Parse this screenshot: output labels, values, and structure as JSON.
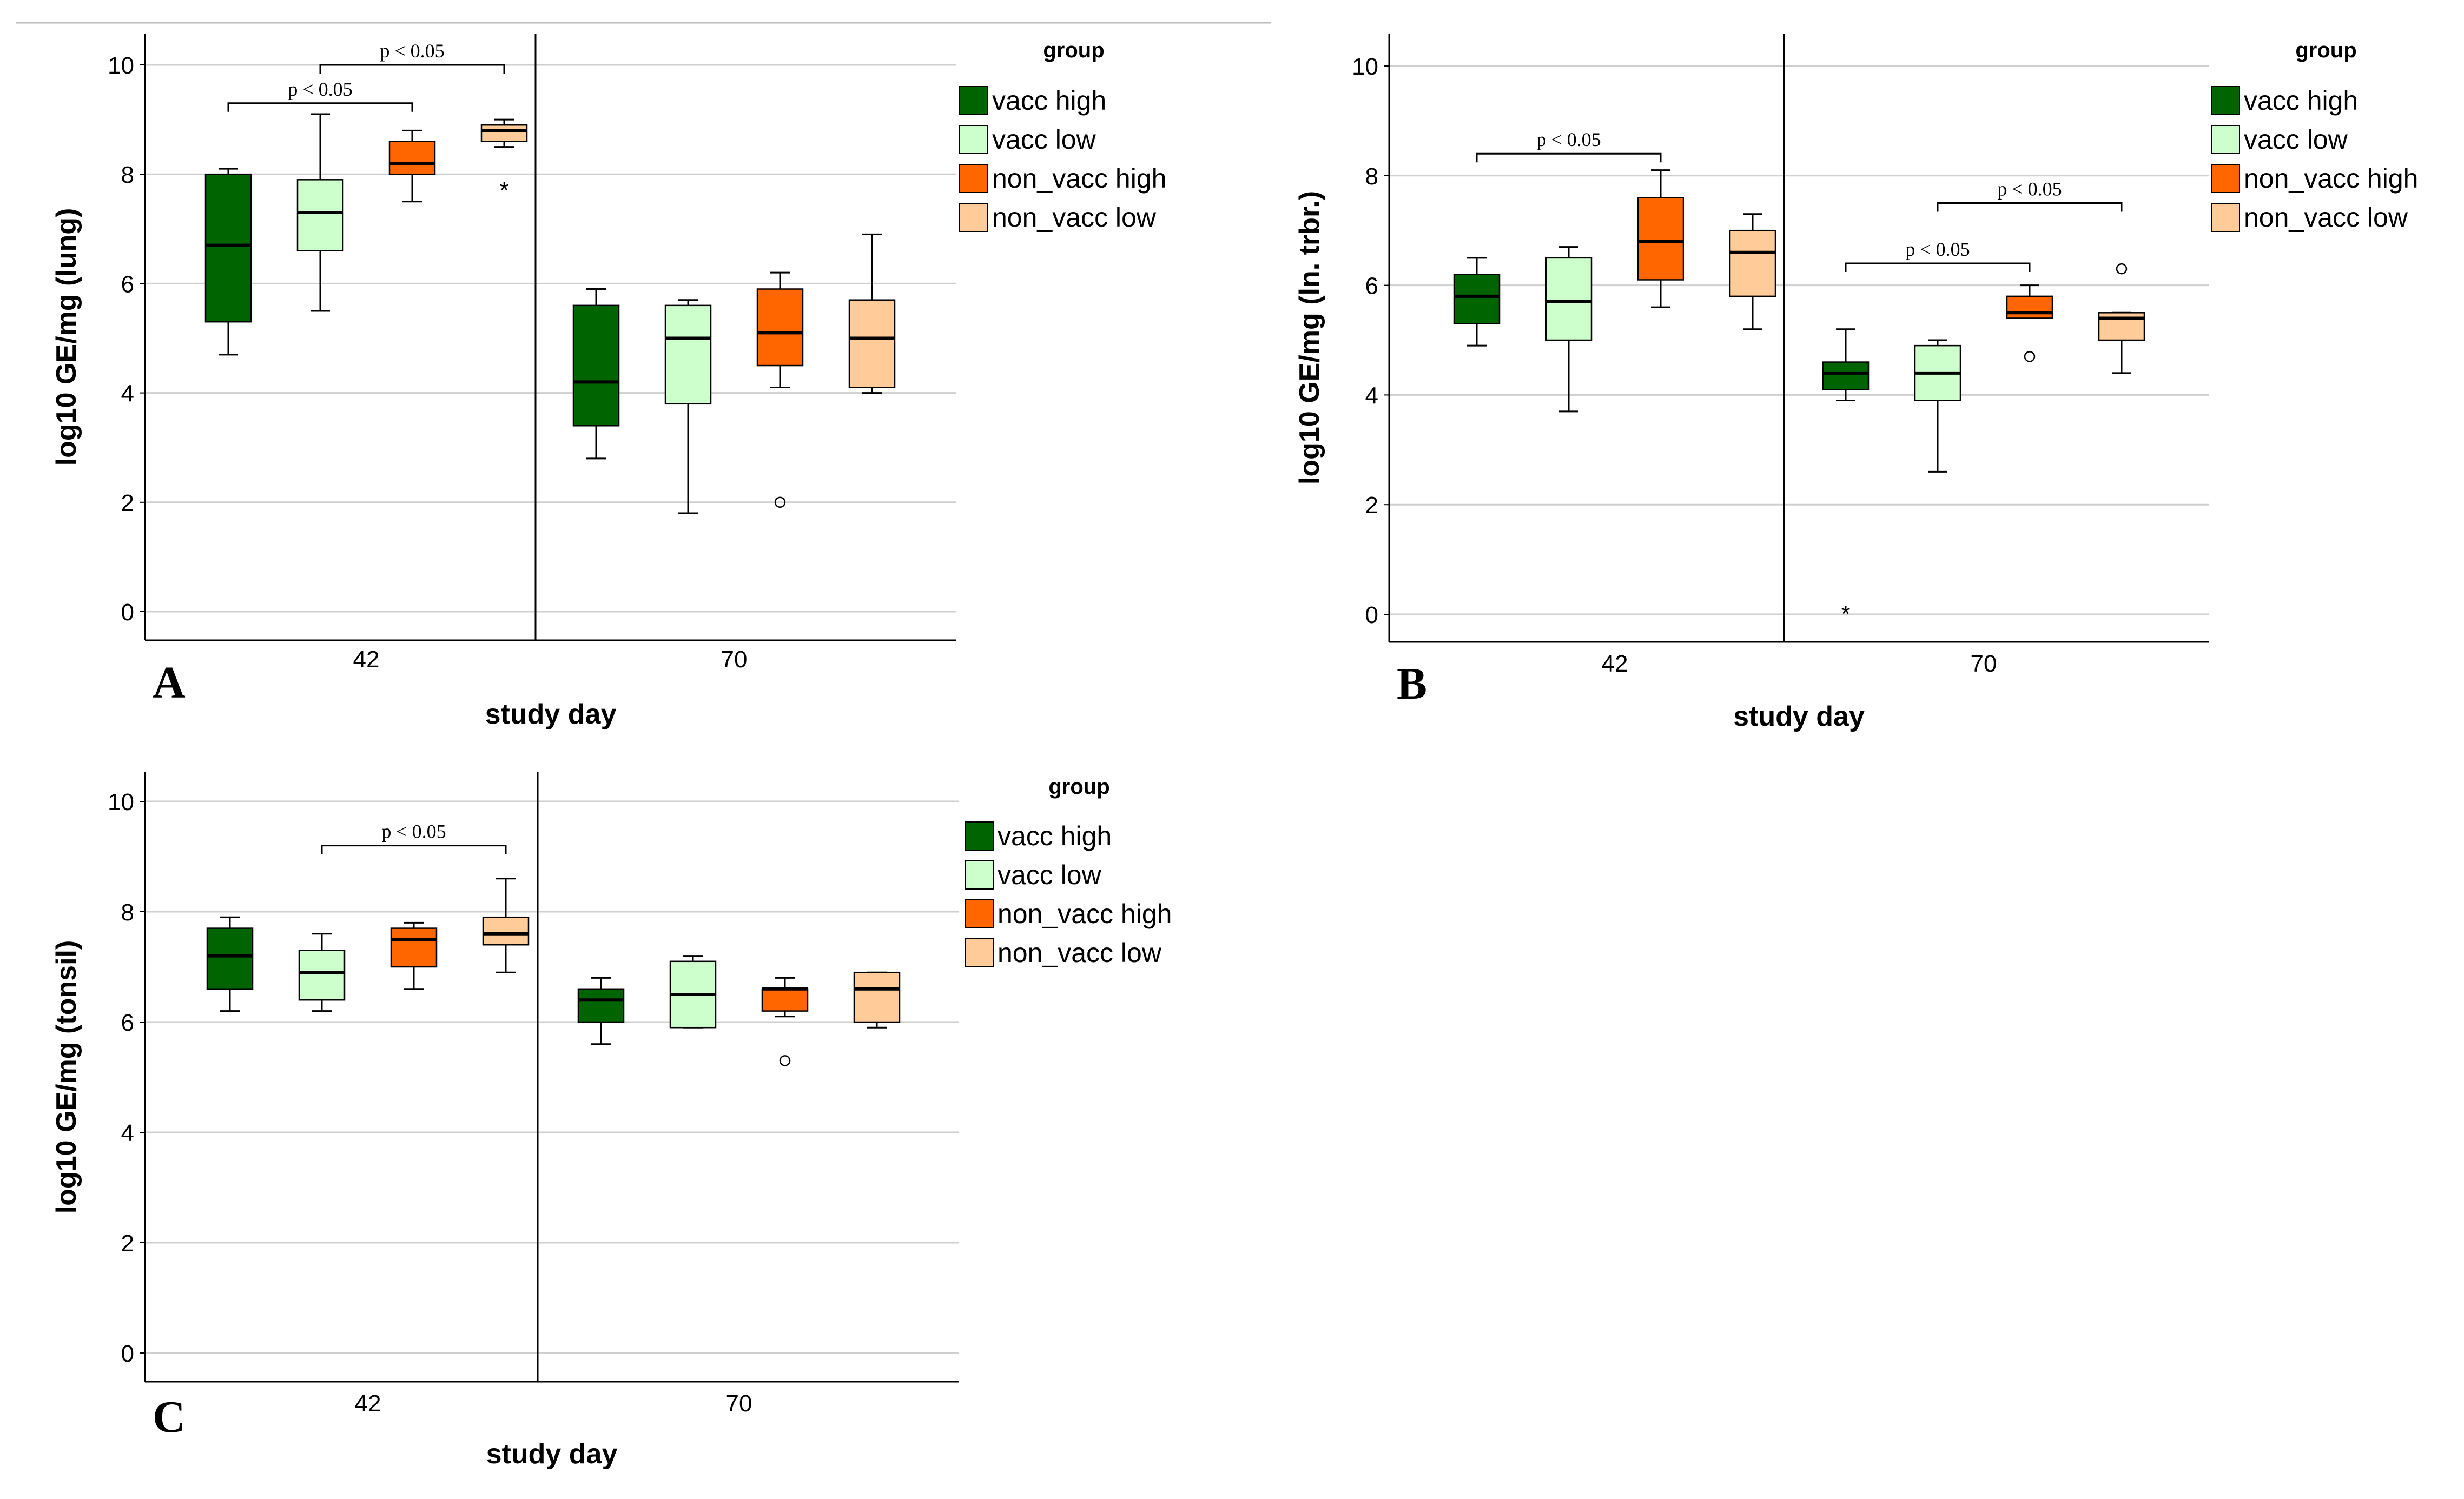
{
  "figure": {
    "top_rule": true
  },
  "colors": {
    "vacc_high": "#006400",
    "vacc_low": "#ccffcc",
    "non_vacc_high": "#ff6600",
    "non_vacc_low": "#ffcc99",
    "grid": "#cfcfcf",
    "axis": "#000000"
  },
  "chart_data": [
    {
      "id": "A",
      "type": "box",
      "panel_label": "A",
      "ylabel": "log10 GE/mg (lung)",
      "xlabel": "study day",
      "categories": [
        "42",
        "70"
      ],
      "ylim": [
        -0.5,
        10.5
      ],
      "yticks": [
        0,
        2,
        4,
        6,
        8,
        10
      ],
      "grid": true,
      "legend": {
        "title": "group",
        "position": "right",
        "entries": [
          "vacc high",
          "vacc low",
          "non_vacc high",
          "non_vacc low"
        ]
      },
      "series": [
        {
          "name": "vacc high",
          "color_key": "vacc_high",
          "boxes": [
            {
              "day": "42",
              "min": 4.7,
              "q1": 5.3,
              "median": 6.7,
              "q3": 8.0,
              "max": 8.1,
              "outliers": [],
              "extremes": []
            },
            {
              "day": "70",
              "min": 2.8,
              "q1": 3.4,
              "median": 4.2,
              "q3": 5.6,
              "max": 5.9,
              "outliers": [],
              "extremes": []
            }
          ]
        },
        {
          "name": "vacc low",
          "color_key": "vacc_low",
          "boxes": [
            {
              "day": "42",
              "min": 5.5,
              "q1": 6.6,
              "median": 7.3,
              "q3": 7.9,
              "max": 9.1,
              "outliers": [],
              "extremes": []
            },
            {
              "day": "70",
              "min": 1.8,
              "q1": 3.8,
              "median": 5.0,
              "q3": 5.6,
              "max": 5.7,
              "outliers": [],
              "extremes": []
            }
          ]
        },
        {
          "name": "non_vacc high",
          "color_key": "non_vacc_high",
          "boxes": [
            {
              "day": "42",
              "min": 7.5,
              "q1": 8.0,
              "median": 8.2,
              "q3": 8.6,
              "max": 8.8,
              "outliers": [],
              "extremes": []
            },
            {
              "day": "70",
              "min": 4.1,
              "q1": 4.5,
              "median": 5.1,
              "q3": 5.9,
              "max": 6.2,
              "outliers": [
                2.0
              ],
              "extremes": []
            }
          ]
        },
        {
          "name": "non_vacc low",
          "color_key": "non_vacc_low",
          "boxes": [
            {
              "day": "42",
              "min": 8.5,
              "q1": 8.6,
              "median": 8.8,
              "q3": 8.9,
              "max": 9.0,
              "outliers": [],
              "extremes": [
                7.7
              ]
            },
            {
              "day": "70",
              "min": 4.0,
              "q1": 4.1,
              "median": 5.0,
              "q3": 5.7,
              "max": 6.9,
              "outliers": [],
              "extremes": []
            }
          ]
        }
      ],
      "annotations": [
        {
          "text": "p < 0.05",
          "day": "42",
          "from": 0,
          "to": 2,
          "y": 9.3
        },
        {
          "text": "p < 0.05",
          "day": "42",
          "from": 1,
          "to": 3,
          "y": 10.0
        }
      ]
    },
    {
      "id": "B",
      "type": "box",
      "panel_label": "B",
      "ylabel": "log10 GE/mg (ln. trbr.)",
      "xlabel": "study day",
      "categories": [
        "42",
        "70"
      ],
      "ylim": [
        -0.5,
        10.5
      ],
      "yticks": [
        0,
        2,
        4,
        6,
        8,
        10
      ],
      "grid": true,
      "legend": {
        "title": "group",
        "position": "right",
        "entries": [
          "vacc high",
          "vacc low",
          "non_vacc high",
          "non_vacc low"
        ]
      },
      "series": [
        {
          "name": "vacc high",
          "color_key": "vacc_high",
          "boxes": [
            {
              "day": "42",
              "min": 4.9,
              "q1": 5.3,
              "median": 5.8,
              "q3": 6.2,
              "max": 6.5,
              "outliers": [],
              "extremes": []
            },
            {
              "day": "70",
              "min": 3.9,
              "q1": 4.1,
              "median": 4.4,
              "q3": 4.6,
              "max": 5.2,
              "outliers": [],
              "extremes": [
                0.0
              ]
            }
          ]
        },
        {
          "name": "vacc low",
          "color_key": "vacc_low",
          "boxes": [
            {
              "day": "42",
              "min": 3.7,
              "q1": 5.0,
              "median": 5.7,
              "q3": 6.5,
              "max": 6.7,
              "outliers": [],
              "extremes": []
            },
            {
              "day": "70",
              "min": 2.6,
              "q1": 3.9,
              "median": 4.4,
              "q3": 4.9,
              "max": 5.0,
              "outliers": [],
              "extremes": []
            }
          ]
        },
        {
          "name": "non_vacc high",
          "color_key": "non_vacc_high",
          "boxes": [
            {
              "day": "42",
              "min": 5.6,
              "q1": 6.1,
              "median": 6.8,
              "q3": 7.6,
              "max": 8.1,
              "outliers": [],
              "extremes": []
            },
            {
              "day": "70",
              "min": 5.4,
              "q1": 5.4,
              "median": 5.5,
              "q3": 5.8,
              "max": 6.0,
              "outliers": [
                4.7
              ],
              "extremes": []
            }
          ]
        },
        {
          "name": "non_vacc low",
          "color_key": "non_vacc_low",
          "boxes": [
            {
              "day": "42",
              "min": 5.2,
              "q1": 5.8,
              "median": 6.6,
              "q3": 7.0,
              "max": 7.3,
              "outliers": [],
              "extremes": []
            },
            {
              "day": "70",
              "min": 4.4,
              "q1": 5.0,
              "median": 5.4,
              "q3": 5.5,
              "max": 5.5,
              "outliers": [
                6.3
              ],
              "extremes": []
            }
          ]
        }
      ],
      "annotations": [
        {
          "text": "p < 0.05",
          "day": "42",
          "from": 0,
          "to": 2,
          "y": 8.4
        },
        {
          "text": "p < 0.05",
          "day": "70",
          "from": 0,
          "to": 2,
          "y": 6.4
        },
        {
          "text": "p < 0.05",
          "day": "70",
          "from": 1,
          "to": 3,
          "y": 7.5
        }
      ]
    },
    {
      "id": "C",
      "type": "box",
      "panel_label": "C",
      "ylabel": "log10 GE/mg (tonsil)",
      "xlabel": "study day",
      "categories": [
        "42",
        "70"
      ],
      "ylim": [
        -0.5,
        10.5
      ],
      "yticks": [
        0,
        2,
        4,
        6,
        8,
        10
      ],
      "grid": true,
      "legend": {
        "title": "group",
        "position": "right",
        "entries": [
          "vacc high",
          "vacc low",
          "non_vacc high",
          "non_vacc low"
        ]
      },
      "series": [
        {
          "name": "vacc high",
          "color_key": "vacc_high",
          "boxes": [
            {
              "day": "42",
              "min": 6.2,
              "q1": 6.6,
              "median": 7.2,
              "q3": 7.7,
              "max": 7.9,
              "outliers": [],
              "extremes": []
            },
            {
              "day": "70",
              "min": 5.6,
              "q1": 6.0,
              "median": 6.4,
              "q3": 6.6,
              "max": 6.8,
              "outliers": [],
              "extremes": []
            }
          ]
        },
        {
          "name": "vacc low",
          "color_key": "vacc_low",
          "boxes": [
            {
              "day": "42",
              "min": 6.2,
              "q1": 6.4,
              "median": 6.9,
              "q3": 7.3,
              "max": 7.6,
              "outliers": [],
              "extremes": []
            },
            {
              "day": "70",
              "min": 5.9,
              "q1": 5.9,
              "median": 6.5,
              "q3": 7.1,
              "max": 7.2,
              "outliers": [],
              "extremes": []
            }
          ]
        },
        {
          "name": "non_vacc high",
          "color_key": "non_vacc_high",
          "boxes": [
            {
              "day": "42",
              "min": 6.6,
              "q1": 7.0,
              "median": 7.5,
              "q3": 7.7,
              "max": 7.8,
              "outliers": [],
              "extremes": []
            },
            {
              "day": "70",
              "min": 6.1,
              "q1": 6.2,
              "median": 6.6,
              "q3": 6.6,
              "max": 6.8,
              "outliers": [
                5.3
              ],
              "extremes": []
            }
          ]
        },
        {
          "name": "non_vacc low",
          "color_key": "non_vacc_low",
          "boxes": [
            {
              "day": "42",
              "min": 6.9,
              "q1": 7.4,
              "median": 7.6,
              "q3": 7.9,
              "max": 8.6,
              "outliers": [],
              "extremes": []
            },
            {
              "day": "70",
              "min": 5.9,
              "q1": 6.0,
              "median": 6.6,
              "q3": 6.9,
              "max": 6.9,
              "outliers": [],
              "extremes": []
            }
          ]
        }
      ],
      "annotations": [
        {
          "text": "p < 0.05",
          "day": "42",
          "from": 1,
          "to": 3,
          "y": 9.2
        }
      ]
    }
  ]
}
